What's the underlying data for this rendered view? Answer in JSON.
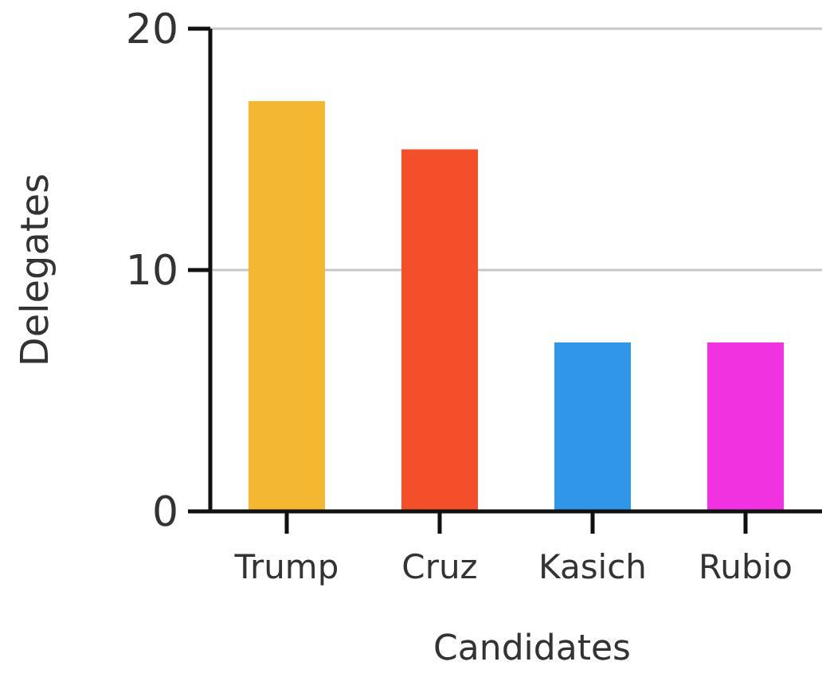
{
  "chart_data": {
    "type": "bar",
    "xlabel": "Candidates",
    "ylabel": "Delegates",
    "categories": [
      "Trump",
      "Cruz",
      "Kasich",
      "Rubio"
    ],
    "values": [
      17,
      15,
      7,
      7
    ],
    "colors": [
      "#f4b731",
      "#f24f2a",
      "#2f96e8",
      "#f032e0"
    ],
    "ylim": [
      0,
      20
    ],
    "yticks": [
      0,
      10,
      20
    ],
    "grid": "y"
  }
}
